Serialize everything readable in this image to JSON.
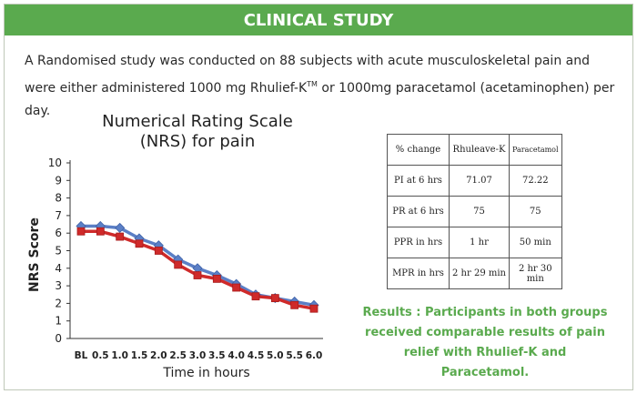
{
  "header": {
    "title": "CLINICAL STUDY"
  },
  "intro": {
    "text_before_tm": "A Randomised study was conducted on 88 subjects with acute musculoskeletal pain and were either administered 1000 mg Rhulief-K",
    "tm": "TM",
    "text_after_tm": " or 1000mg paracetamol (acetaminophen) per day."
  },
  "chart_data": {
    "type": "line",
    "title_line1": "Numerical Rating Scale",
    "title_line2": "(NRS) for pain",
    "xlabel": "Time in hours",
    "ylabel": "NRS Score",
    "categories": [
      "BL",
      "0.5",
      "1.0",
      "1.5",
      "2.0",
      "2.5",
      "3.0",
      "3.5",
      "4.0",
      "4.5",
      "5.0",
      "5.5",
      "6.0"
    ],
    "ylim": [
      0,
      10
    ],
    "yticks": [
      0,
      1,
      2,
      3,
      4,
      5,
      6,
      7,
      8,
      9,
      10
    ],
    "grid": false,
    "legend": "none",
    "series": [
      {
        "values": [
          6.4,
          6.4,
          6.3,
          5.7,
          5.3,
          4.5,
          4.0,
          3.6,
          3.1,
          2.5,
          2.3,
          2.1,
          1.9
        ],
        "color": "#5b7fc6",
        "marker": "diamond"
      },
      {
        "values": [
          6.1,
          6.1,
          5.8,
          5.4,
          5.0,
          4.2,
          3.6,
          3.4,
          2.9,
          2.4,
          2.3,
          1.9,
          1.7
        ],
        "color": "#cf2a2a",
        "marker": "square"
      }
    ]
  },
  "table": {
    "headers": [
      "% change",
      "Rhuleave-K",
      "Paracetamol"
    ],
    "rows": [
      [
        "PI at 6 hrs",
        "71.07",
        "72.22"
      ],
      [
        "PR at 6 hrs",
        "75",
        "75"
      ],
      [
        "PPR in hrs",
        "1 hr",
        "50 min"
      ],
      [
        "MPR in hrs",
        "2 hr 29 min",
        "2 hr 30 min"
      ]
    ]
  },
  "results_text": "Results : Participants in both groups received comparable results of pain relief with Rhulief-K and Paracetamol.",
  "colors": {
    "accent_green": "#5aaa4e"
  }
}
